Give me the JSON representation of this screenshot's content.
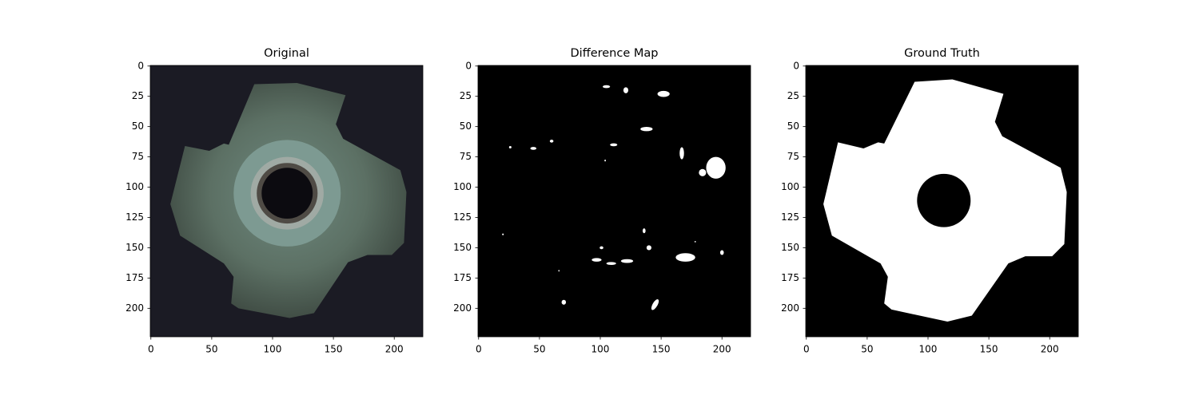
{
  "chart_data": [
    {
      "type": "image",
      "title": "Original",
      "xlim": [
        -0.5,
        223.5
      ],
      "ylim": [
        223.5,
        -0.5
      ],
      "xticks": [
        0,
        50,
        100,
        150,
        200
      ],
      "yticks": [
        0,
        25,
        50,
        75,
        100,
        125,
        150,
        175,
        200
      ]
    },
    {
      "type": "image",
      "title": "Difference Map",
      "xlim": [
        -0.5,
        223.5
      ],
      "ylim": [
        223.5,
        -0.5
      ],
      "xticks": [
        0,
        50,
        100,
        150,
        200
      ],
      "yticks": [
        0,
        25,
        50,
        75,
        100,
        125,
        150,
        175,
        200
      ]
    },
    {
      "type": "image",
      "title": "Ground Truth",
      "xlim": [
        -0.5,
        223.5
      ],
      "ylim": [
        223.5,
        -0.5
      ],
      "xticks": [
        0,
        50,
        100,
        150,
        200
      ],
      "yticks": [
        0,
        25,
        50,
        75,
        100,
        125,
        150,
        175,
        200
      ]
    }
  ]
}
